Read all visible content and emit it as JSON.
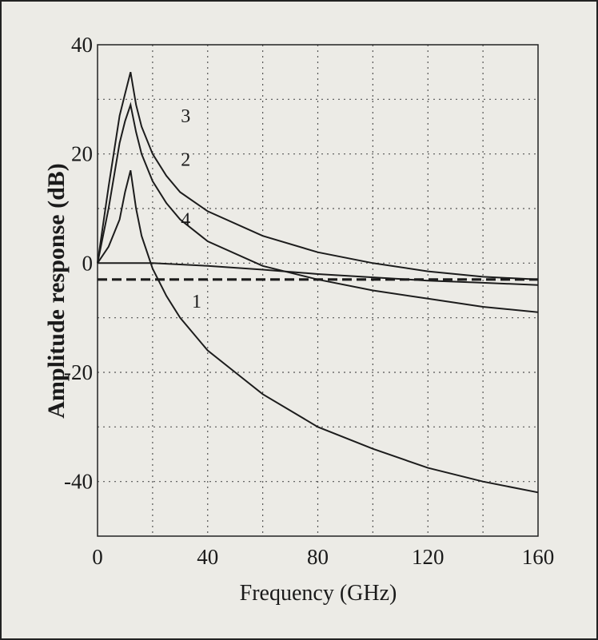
{
  "chart_data": {
    "type": "line",
    "xlabel": "Frequency (GHz)",
    "ylabel": "Amplitude response (dB)",
    "xlim": [
      0,
      160
    ],
    "ylim": [
      -50,
      40
    ],
    "x_ticks": [
      0,
      40,
      80,
      120,
      160
    ],
    "y_ticks": [
      40,
      20,
      0,
      -20,
      -40
    ],
    "grid": true,
    "series": [
      {
        "name": "1",
        "label_at": [
          36,
          -7
        ],
        "x": [
          0,
          4,
          8,
          10,
          12,
          14,
          16,
          20,
          25,
          30,
          40,
          50,
          60,
          80,
          100,
          120,
          140,
          160
        ],
        "y": [
          0,
          3,
          8,
          13,
          17,
          10,
          5,
          -1,
          -6,
          -10,
          -16,
          -20,
          -24,
          -30,
          -34,
          -37.5,
          -40,
          -42
        ]
      },
      {
        "name": "2",
        "label_at": [
          32,
          19
        ],
        "x": [
          0,
          4,
          8,
          10,
          12,
          14,
          16,
          20,
          25,
          30,
          40,
          60,
          80,
          100,
          120,
          140,
          160
        ],
        "y": [
          0,
          10,
          22,
          26,
          29,
          24,
          20,
          15,
          11,
          8,
          4,
          -0.5,
          -3,
          -5,
          -6.5,
          -8,
          -9
        ]
      },
      {
        "name": "3",
        "label_at": [
          32,
          27
        ],
        "x": [
          0,
          4,
          8,
          10,
          12,
          14,
          16,
          20,
          25,
          30,
          40,
          60,
          80,
          100,
          120,
          140,
          160
        ],
        "y": [
          0,
          14,
          27,
          31,
          35,
          29,
          25,
          20,
          16,
          13,
          9.5,
          5,
          2,
          0,
          -1.5,
          -2.5,
          -3
        ]
      },
      {
        "name": "4",
        "label_at": [
          32,
          8
        ],
        "x": [
          0,
          20,
          40,
          60,
          80,
          100,
          120,
          140,
          160
        ],
        "y": [
          0,
          0,
          -0.5,
          -1.2,
          -2,
          -2.6,
          -3.2,
          -3.6,
          -4
        ]
      },
      {
        "name": "",
        "x": [
          0,
          160
        ],
        "y": [
          -3,
          -3
        ],
        "style": "dashed"
      }
    ]
  }
}
